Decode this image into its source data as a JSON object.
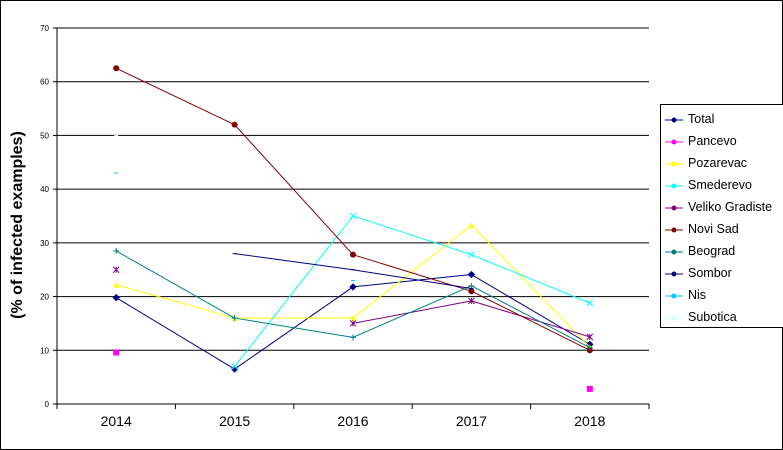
{
  "chart_data": {
    "type": "line",
    "title": "",
    "xlabel": "",
    "ylabel": "(% of infected examples)",
    "x": [
      "2014",
      "2015",
      "2016",
      "2017",
      "2018"
    ],
    "ylim": [
      0,
      70
    ],
    "yticks": [
      "0",
      "10",
      "20",
      "30",
      "40",
      "50",
      "60",
      "70"
    ],
    "grid": true,
    "legend_position": "right",
    "series": [
      {
        "name": "Total",
        "color": "#000080",
        "marker": "diamond",
        "values": [
          19.8,
          6.5,
          21.8,
          24.1,
          11.1
        ]
      },
      {
        "name": "Pancevo",
        "color": "#FF00FF",
        "marker": "square",
        "values": [
          9.6,
          null,
          null,
          null,
          2.8
        ]
      },
      {
        "name": "Pozarevac",
        "color": "#FFFF00",
        "marker": "triangle",
        "values": [
          22.2,
          16.0,
          16.0,
          33.3,
          10.6
        ]
      },
      {
        "name": "Smederevo",
        "color": "#00FFFF",
        "marker": "x",
        "values": [
          null,
          7.0,
          35.0,
          27.8,
          18.8
        ]
      },
      {
        "name": "Veliko Gradiste",
        "color": "#800080",
        "marker": "star",
        "values": [
          25.0,
          null,
          15.0,
          19.2,
          12.5
        ]
      },
      {
        "name": "Novi Sad",
        "color": "#800000",
        "marker": "circle",
        "values": [
          62.5,
          52.0,
          27.8,
          21.0,
          10.0
        ]
      },
      {
        "name": "Beograd",
        "color": "#008080",
        "marker": "plus",
        "values": [
          28.5,
          16.0,
          12.4,
          22.0,
          10.5
        ]
      },
      {
        "name": "Sombor",
        "color": "#000080",
        "marker": "dash",
        "values": [
          null,
          28.0,
          25.0,
          21.5,
          null
        ]
      },
      {
        "name": "Nis",
        "color": "#00CCFF",
        "marker": "dash",
        "values": [
          43.0,
          null,
          23.0,
          null,
          null
        ]
      },
      {
        "name": "Subotica",
        "color": "#CCFFFF",
        "marker": "dash",
        "values": [
          50.0,
          null,
          null,
          null,
          null
        ]
      }
    ]
  }
}
